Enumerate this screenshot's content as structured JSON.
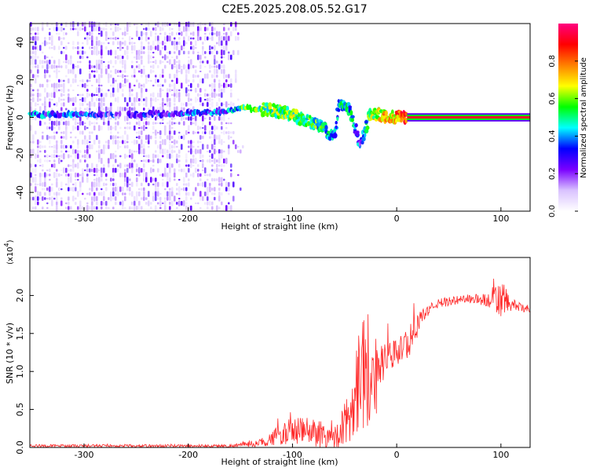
{
  "title": "C2E5.2025.208.05.52.G17",
  "chart_data": [
    {
      "type": "heatmap",
      "xlabel": "Height of straight line (km)",
      "ylabel": "Frequency (Hz)",
      "xlim": [
        -352,
        128
      ],
      "ylim": [
        -50,
        50
      ],
      "x_ticks": [
        -300,
        -200,
        -100,
        0,
        100
      ],
      "y_ticks": [
        -40,
        -20,
        0,
        20,
        40
      ],
      "colorbar": {
        "label": "Normalized spectral amplitude",
        "range": [
          0,
          1
        ],
        "ticks": [
          0.0,
          0.2,
          0.4,
          0.6,
          0.8
        ],
        "colors": [
          "#ffffff",
          "#d9c2ff",
          "#7a00ff",
          "#0000ff",
          "#00ffff",
          "#00ff00",
          "#ffff00",
          "#ff8000",
          "#ff0000",
          "#ff0080"
        ]
      },
      "noise_region": {
        "x_range": [
          -352,
          -148
        ],
        "freq_range": [
          -50,
          50
        ],
        "amplitude": 0.15
      },
      "ridge": [
        {
          "x": -352,
          "freq": 1.5,
          "amp": 0.35
        },
        {
          "x": -300,
          "freq": 1.5,
          "amp": 0.3
        },
        {
          "x": -265,
          "freq": 1.0,
          "amp": 0.25
        },
        {
          "x": -165,
          "freq": 3.0,
          "amp": 0.35
        },
        {
          "x": -150,
          "freq": 5.0,
          "amp": 0.5
        },
        {
          "x": -120,
          "freq": 4.0,
          "amp": 0.55
        },
        {
          "x": -100,
          "freq": 1.0,
          "amp": 0.55
        },
        {
          "x": -75,
          "freq": -4.0,
          "amp": 0.5
        },
        {
          "x": -60,
          "freq": -10.0,
          "amp": 0.4
        },
        {
          "x": -55,
          "freq": 8.0,
          "amp": 0.4
        },
        {
          "x": -45,
          "freq": 4.0,
          "amp": 0.45
        },
        {
          "x": -35,
          "freq": -14.0,
          "amp": 0.3
        },
        {
          "x": -25,
          "freq": 2.0,
          "amp": 0.6
        },
        {
          "x": -5,
          "freq": 0.5,
          "amp": 0.7
        },
        {
          "x": 10,
          "freq": 0.0,
          "amp": 0.9
        },
        {
          "x": 128,
          "freq": 0.0,
          "amp": 0.95
        }
      ]
    },
    {
      "type": "line",
      "xlabel": "Height of straight line (km)",
      "ylabel": "SNR (10 * v/v)",
      "y_multiplier": "(x10",
      "y_multiplier_exp": "4",
      "xlim": [
        -352,
        128
      ],
      "ylim": [
        0,
        2.5
      ],
      "x_ticks": [
        -300,
        -200,
        -100,
        0,
        100
      ],
      "y_ticks": [
        0.0,
        0.5,
        1.0,
        1.5,
        2.0
      ],
      "y_tick_labels": [
        "0.0",
        "0.5",
        "1.0",
        "1.5",
        "2.0"
      ],
      "color": "#ff2a2a",
      "envelope": [
        {
          "x": -352,
          "base": 0.02,
          "noise": 0.02
        },
        {
          "x": -160,
          "base": 0.02,
          "noise": 0.02
        },
        {
          "x": -130,
          "base": 0.06,
          "noise": 0.05
        },
        {
          "x": -115,
          "base": 0.15,
          "noise": 0.12
        },
        {
          "x": -100,
          "base": 0.22,
          "noise": 0.18
        },
        {
          "x": -75,
          "base": 0.2,
          "noise": 0.2
        },
        {
          "x": -60,
          "base": 0.12,
          "noise": 0.15
        },
        {
          "x": -45,
          "base": 0.4,
          "noise": 0.35
        },
        {
          "x": -38,
          "base": 0.9,
          "noise": 0.7
        },
        {
          "x": -30,
          "base": 1.1,
          "noise": 0.9
        },
        {
          "x": -22,
          "base": 0.9,
          "noise": 0.7
        },
        {
          "x": -15,
          "base": 1.1,
          "noise": 0.25
        },
        {
          "x": -5,
          "base": 1.2,
          "noise": 0.2
        },
        {
          "x": 5,
          "base": 1.3,
          "noise": 0.2
        },
        {
          "x": 15,
          "base": 1.45,
          "noise": 0.2
        },
        {
          "x": 25,
          "base": 1.75,
          "noise": 0.08
        },
        {
          "x": 40,
          "base": 1.9,
          "noise": 0.06
        },
        {
          "x": 70,
          "base": 1.96,
          "noise": 0.06
        },
        {
          "x": 90,
          "base": 1.93,
          "noise": 0.1
        },
        {
          "x": 100,
          "base": 1.95,
          "noise": 0.3
        },
        {
          "x": 110,
          "base": 1.88,
          "noise": 0.08
        },
        {
          "x": 128,
          "base": 1.8,
          "noise": 0.04
        }
      ]
    }
  ]
}
